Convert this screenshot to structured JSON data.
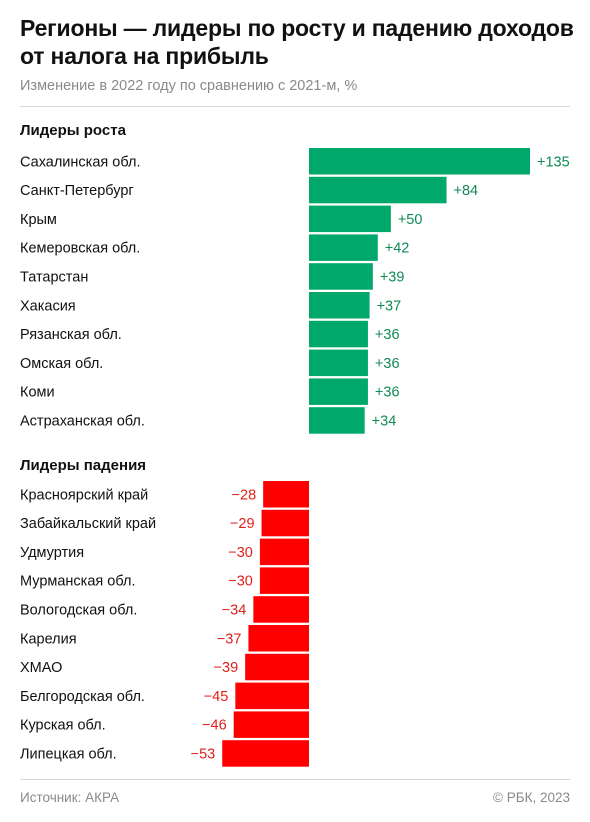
{
  "title": "Регионы — лидеры по росту и падению доходов от налога на прибыль",
  "subtitle": "Изменение в 2022 году по сравнению с 2021-м, %",
  "chart_data": {
    "type": "bar",
    "orientation": "horizontal",
    "groups": [
      {
        "label": "Лидеры роста",
        "color": "#00a86b",
        "label_color": "#0f8a55",
        "categories": [
          "Сахалинская обл.",
          "Санкт-Петербург",
          "Крым",
          "Кемеровская обл.",
          "Татарстан",
          "Хакасия",
          "Рязанская обл.",
          "Омская обл.",
          "Коми",
          "Астраханская обл."
        ],
        "values": [
          135,
          84,
          50,
          42,
          39,
          37,
          36,
          36,
          36,
          34
        ],
        "value_labels": [
          "+135",
          "+84",
          "+50",
          "+42",
          "+39",
          "+37",
          "+36",
          "+36",
          "+36",
          "+34"
        ]
      },
      {
        "label": "Лидеры падения",
        "color": "#ff0000",
        "label_color": "#e0201a",
        "categories": [
          "Красноярский край",
          "Забайкальский край",
          "Удмуртия",
          "Мурманская обл.",
          "Вологодская обл.",
          "Карелия",
          "ХМАО",
          "Белгородская обл.",
          "Курская обл.",
          "Липецкая обл."
        ],
        "values": [
          -28,
          -29,
          -30,
          -30,
          -34,
          -37,
          -39,
          -45,
          -46,
          -53
        ],
        "value_labels": [
          "−28",
          "−29",
          "−30",
          "−30",
          "−34",
          "−37",
          "−39",
          "−45",
          "−46",
          "−53"
        ]
      }
    ]
  },
  "footer": {
    "source": "Источник: АКРА",
    "copyright": "© РБК, 2023"
  }
}
